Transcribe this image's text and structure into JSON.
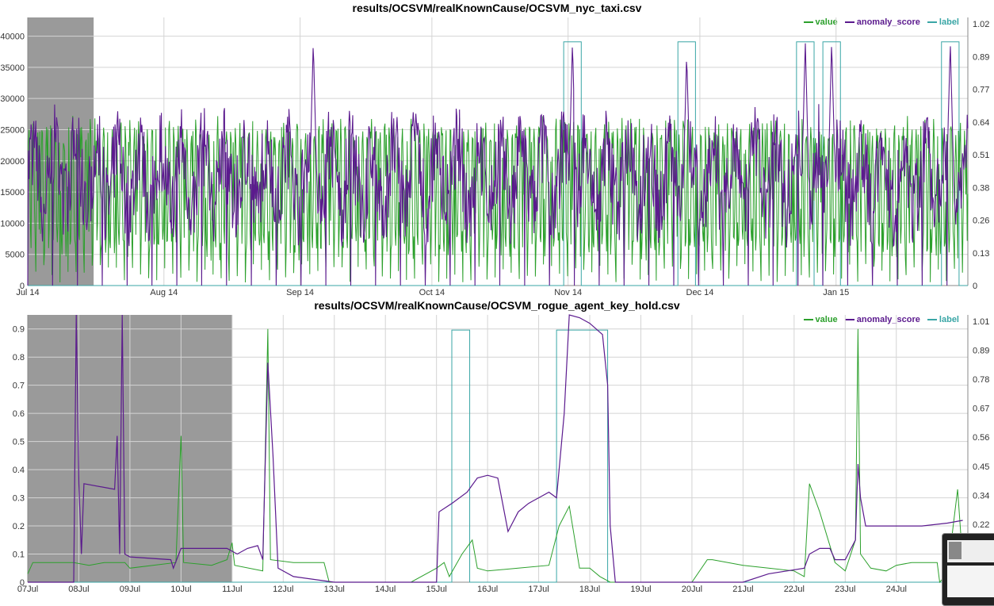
{
  "colors": {
    "value": "#2ca02c",
    "anomaly_score": "#5b1a8e",
    "label": "#3aa6a6",
    "probation": "#9a9a9a",
    "grid": "#d4d4d4"
  },
  "legend": {
    "value": "value",
    "anomaly_score": "anomaly_score",
    "label": "label"
  },
  "thumbnail": {
    "name": "window-thumbnail"
  },
  "chart_data": [
    {
      "type": "line",
      "title": "results/OCSVM/realKnownCause/OCSVM_nyc_taxi.csv",
      "x_ticks": [
        "Jul 14",
        "Aug 14",
        "Sep 14",
        "Oct 14",
        "Nov 14",
        "Dec 14",
        "Jan 15"
      ],
      "x_tick_days": [
        0,
        31,
        62,
        92,
        123,
        153,
        184
      ],
      "x_range_days": [
        0,
        214
      ],
      "y_ticks": [
        0,
        5000,
        10000,
        15000,
        20000,
        25000,
        30000,
        35000,
        40000
      ],
      "ylim": [
        0,
        43000
      ],
      "y2_ticks": [
        "0",
        "0.13",
        "0.26",
        "0.38",
        "0.51",
        "0.64",
        "0.77",
        "0.89",
        "1.02"
      ],
      "y2lim": [
        0,
        1.1
      ],
      "probation_days": [
        0,
        15
      ],
      "label_windows_days": [
        [
          122,
          126
        ],
        [
          148,
          152
        ],
        [
          175,
          179
        ],
        [
          181,
          185
        ],
        [
          208,
          212
        ]
      ],
      "value": {
        "base": 15500,
        "amp": 10000,
        "period_days": 7,
        "jitter": 3500
      },
      "anomaly_score": {
        "mean": 0.45,
        "spread": 0.35,
        "peaks": [
          {
            "day": 65,
            "v": 1.0
          },
          {
            "day": 124,
            "v": 1.0
          },
          {
            "day": 150,
            "v": 0.95
          },
          {
            "day": 177,
            "v": 1.0
          },
          {
            "day": 183,
            "v": 1.0
          },
          {
            "day": 210,
            "v": 1.0
          }
        ]
      }
    },
    {
      "type": "line",
      "title": "results/OCSVM/realKnownCause/OCSVM_rogue_agent_key_hold.csv",
      "x_ticks": [
        "07Jul",
        "08Jul",
        "09Jul",
        "10Jul",
        "11Jul",
        "12Jul",
        "13Jul",
        "14Jul",
        "15Jul",
        "16Jul",
        "17Jul",
        "18Jul",
        "19Jul",
        "20Jul",
        "21Jul",
        "22Jul",
        "23Jul",
        "24Jul"
      ],
      "x_range_days": [
        0,
        18.4
      ],
      "y_ticks": [
        0,
        0.1,
        0.2,
        0.3,
        0.4,
        0.5,
        0.6,
        0.7,
        0.8,
        0.9
      ],
      "ylim": [
        0,
        0.95
      ],
      "y2_ticks": [
        "0",
        "0.11",
        "0.22",
        "0.34",
        "0.45",
        "0.56",
        "0.67",
        "0.78",
        "0.89",
        "1.01"
      ],
      "y2lim": [
        0,
        1.06
      ],
      "probation_days": [
        0,
        4.0
      ],
      "label_windows_days": [
        [
          8.3,
          8.65
        ],
        [
          10.35,
          11.35
        ]
      ],
      "value": [
        [
          0,
          0.03
        ],
        [
          0.1,
          0.07
        ],
        [
          0.5,
          0.07
        ],
        [
          0.9,
          0.07
        ],
        [
          1.2,
          0.06
        ],
        [
          1.5,
          0.07
        ],
        [
          1.9,
          0.07
        ],
        [
          2.0,
          0.05
        ],
        [
          2.9,
          0.07
        ],
        [
          3.0,
          0.52
        ],
        [
          3.05,
          0.07
        ],
        [
          3.6,
          0.06
        ],
        [
          3.9,
          0.08
        ],
        [
          4.0,
          0.14
        ],
        [
          4.05,
          0.06
        ],
        [
          4.6,
          0.04
        ],
        [
          4.7,
          0.9
        ],
        [
          4.75,
          0.08
        ],
        [
          5.2,
          0.07
        ],
        [
          5.8,
          0.07
        ],
        [
          5.9,
          0
        ],
        [
          7.5,
          0
        ],
        [
          8.0,
          0.05
        ],
        [
          8.15,
          0.07
        ],
        [
          8.25,
          0.02
        ],
        [
          8.5,
          0.1
        ],
        [
          8.7,
          0.15
        ],
        [
          8.8,
          0.05
        ],
        [
          9.0,
          0.04
        ],
        [
          9.6,
          0.05
        ],
        [
          10.2,
          0.06
        ],
        [
          10.4,
          0.2
        ],
        [
          10.6,
          0.27
        ],
        [
          10.8,
          0.05
        ],
        [
          11.0,
          0.05
        ],
        [
          11.2,
          0.02
        ],
        [
          11.4,
          0
        ],
        [
          12.0,
          0
        ],
        [
          13.0,
          0
        ],
        [
          13.3,
          0.08
        ],
        [
          13.4,
          0.08
        ],
        [
          14.0,
          0.06
        ],
        [
          14.5,
          0.05
        ],
        [
          15.0,
          0.04
        ],
        [
          15.2,
          0.02
        ],
        [
          15.3,
          0.35
        ],
        [
          15.5,
          0.25
        ],
        [
          15.8,
          0.07
        ],
        [
          16.0,
          0.04
        ],
        [
          16.2,
          0.15
        ],
        [
          16.25,
          0.9
        ],
        [
          16.3,
          0.1
        ],
        [
          16.5,
          0.05
        ],
        [
          16.8,
          0.04
        ],
        [
          17.0,
          0.06
        ],
        [
          17.3,
          0.07
        ],
        [
          17.8,
          0.07
        ],
        [
          17.85,
          0
        ],
        [
          18.0,
          0.03
        ],
        [
          18.2,
          0.33
        ],
        [
          18.3,
          0.07
        ]
      ],
      "anomaly_score": [
        [
          0,
          0
        ],
        [
          0.9,
          0
        ],
        [
          0.95,
          0.95
        ],
        [
          1.0,
          0.35
        ],
        [
          1.05,
          0.1
        ],
        [
          1.1,
          0.35
        ],
        [
          1.7,
          0.33
        ],
        [
          1.75,
          0.52
        ],
        [
          1.8,
          0.1
        ],
        [
          1.85,
          0.95
        ],
        [
          1.9,
          0.1
        ],
        [
          2.0,
          0.09
        ],
        [
          2.8,
          0.08
        ],
        [
          2.85,
          0.05
        ],
        [
          3.0,
          0.12
        ],
        [
          3.9,
          0.12
        ],
        [
          4.1,
          0.1
        ],
        [
          4.3,
          0.12
        ],
        [
          4.5,
          0.13
        ],
        [
          4.6,
          0.08
        ],
        [
          4.7,
          0.78
        ],
        [
          4.8,
          0.45
        ],
        [
          4.9,
          0.05
        ],
        [
          5.2,
          0.02
        ],
        [
          6.0,
          0
        ],
        [
          7.5,
          0
        ],
        [
          8.0,
          0
        ],
        [
          8.05,
          0.25
        ],
        [
          8.3,
          0.28
        ],
        [
          8.6,
          0.32
        ],
        [
          8.8,
          0.37
        ],
        [
          9.0,
          0.38
        ],
        [
          9.2,
          0.37
        ],
        [
          9.4,
          0.18
        ],
        [
          9.6,
          0.25
        ],
        [
          9.8,
          0.28
        ],
        [
          9.9,
          0.29
        ],
        [
          10.0,
          0.3
        ],
        [
          10.2,
          0.32
        ],
        [
          10.35,
          0.3
        ],
        [
          10.5,
          0.6
        ],
        [
          10.6,
          0.95
        ],
        [
          10.8,
          0.94
        ],
        [
          11.0,
          0.92
        ],
        [
          11.25,
          0.88
        ],
        [
          11.35,
          0.7
        ],
        [
          11.4,
          0.2
        ],
        [
          11.5,
          0
        ],
        [
          12.0,
          0
        ],
        [
          13.0,
          0
        ],
        [
          14.0,
          0
        ],
        [
          14.5,
          0.03
        ],
        [
          15.2,
          0.05
        ],
        [
          15.3,
          0.1
        ],
        [
          15.5,
          0.12
        ],
        [
          15.7,
          0.12
        ],
        [
          15.8,
          0.08
        ],
        [
          16.0,
          0.08
        ],
        [
          16.2,
          0.15
        ],
        [
          16.25,
          0.42
        ],
        [
          16.3,
          0.3
        ],
        [
          16.4,
          0.2
        ],
        [
          17.0,
          0.2
        ],
        [
          17.5,
          0.2
        ],
        [
          18.0,
          0.21
        ],
        [
          18.3,
          0.22
        ]
      ]
    }
  ]
}
